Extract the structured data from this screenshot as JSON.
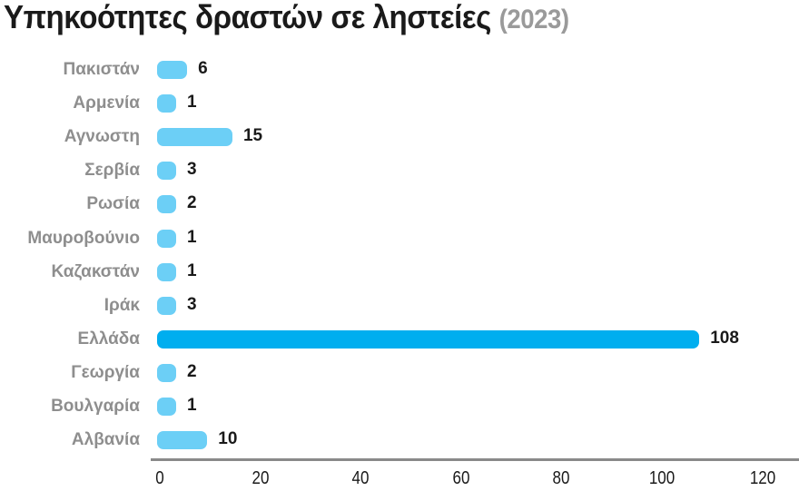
{
  "chart_data": {
    "type": "bar",
    "orientation": "horizontal",
    "title": "Υπηκοότητες δραστών σε ληστείες",
    "subtitle": "(2023)",
    "xlabel": "",
    "ylabel": "",
    "categories": [
      "Πακιστάν",
      "Αρμενία",
      "Αγνωστη",
      "Σερβία",
      "Ρωσία",
      "Μαυροβούνιο",
      "Καζακστάν",
      "Ιράκ",
      "Ελλάδα",
      "Γεωργία",
      "Βουλγαρία",
      "Αλβανία"
    ],
    "values": [
      6,
      1,
      15,
      3,
      2,
      1,
      1,
      3,
      108,
      2,
      1,
      10
    ],
    "xlim": [
      0,
      120
    ],
    "xticks": [
      "0",
      "20",
      "40",
      "60",
      "80",
      "100",
      "120"
    ],
    "grid": false,
    "legend": null,
    "highlight_category": "Ελλάδα",
    "colors": {
      "bar": "#6ccff6",
      "highlight": "#00aeef",
      "axis": "#8a8a8a",
      "label": "#8e8e8e",
      "value": "#1a1a1a"
    }
  },
  "header": {
    "title": "Υπηκοότητες δραστών σε ληστείες",
    "year": "(2023)"
  },
  "rows": [
    {
      "label": "Πακιστάν",
      "value": "6"
    },
    {
      "label": "Αρμενία",
      "value": "1"
    },
    {
      "label": "Αγνωστη",
      "value": "15"
    },
    {
      "label": "Σερβία",
      "value": "3"
    },
    {
      "label": "Ρωσία",
      "value": "2"
    },
    {
      "label": "Μαυροβούνιο",
      "value": "1"
    },
    {
      "label": "Καζακστάν",
      "value": "1"
    },
    {
      "label": "Ιράκ",
      "value": "3"
    },
    {
      "label": "Ελλάδα",
      "value": "108"
    },
    {
      "label": "Γεωργία",
      "value": "2"
    },
    {
      "label": "Βουλγαρία",
      "value": "1"
    },
    {
      "label": "Αλβανία",
      "value": "10"
    }
  ],
  "axis": {
    "ticks": [
      "0",
      "20",
      "40",
      "60",
      "80",
      "100",
      "120"
    ]
  }
}
